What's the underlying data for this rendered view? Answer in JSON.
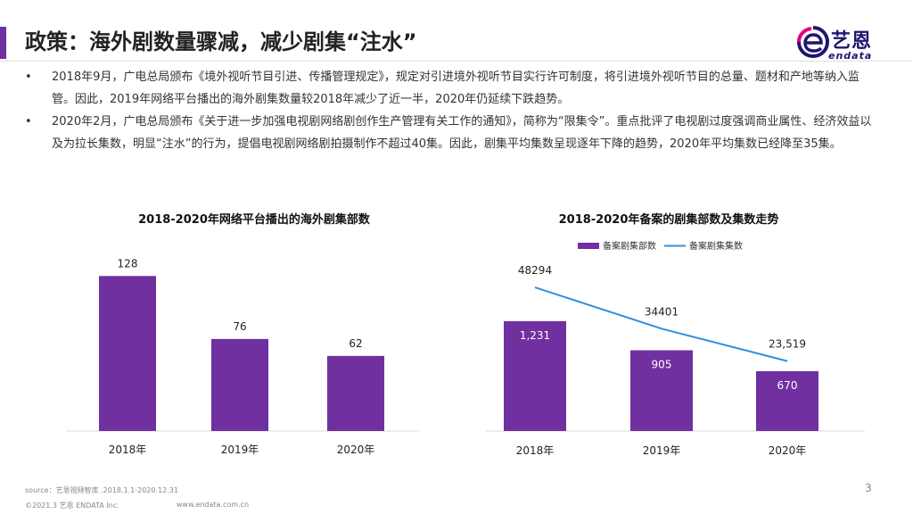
{
  "page": {
    "title": "政策：海外剧数量骤减，减少剧集“注水”",
    "page_number": "3"
  },
  "logo": {
    "name_cn": "艺恩",
    "name_en": "endata",
    "colors": {
      "dark": "#1e1670",
      "pink": "#e6007e"
    }
  },
  "bullets": [
    {
      "marker": "•",
      "text": "2018年9月，广电总局颁布《境外视听节目引进、传播管理规定》，规定对引进境外视听节目实行许可制度，将引进境外视听节目的总量、题材和产地等纳入监管。因此，2019年网络平台播出的海外剧集数量较2018年减少了近一半，2020年仍延续下跌趋势。"
    },
    {
      "marker": "•",
      "text": "2020年2月，广电总局颁布《关于进一步加强电视剧网络剧创作生产管理有关工作的通知》，简称为“限集令”。重点批评了电视剧过度强调商业属性、经济效益以及为拉长集数，明显“注水”的行为，提倡电视剧网络剧拍摄制作不超过40集。因此，剧集平均集数呈现逐年下降的趋势，2020年平均集数已经降至35集。"
    }
  ],
  "chart_data": [
    {
      "type": "bar",
      "title": "2018-2020年网络平台播出的海外剧集部数",
      "categories": [
        "2018年",
        "2019年",
        "2020年"
      ],
      "values": [
        128,
        76,
        62
      ],
      "value_labels": [
        "128",
        "76",
        "62"
      ],
      "ylim": [
        0,
        140
      ],
      "color": "#7030a0"
    },
    {
      "type": "bar+line",
      "title": "2018-2020年备案的剧集部数及集数走势",
      "categories": [
        "2018年",
        "2019年",
        "2020年"
      ],
      "series": [
        {
          "name": "备案剧集部数",
          "type": "bar",
          "values": [
            1231,
            905,
            670
          ],
          "labels": [
            "1,231",
            "905",
            "670"
          ],
          "color": "#7030a0"
        },
        {
          "name": "备案剧集集数",
          "type": "line",
          "values": [
            48294,
            34401,
            23519
          ],
          "labels": [
            "48294",
            "34401",
            "23,519"
          ],
          "color": "#2f8fe0"
        }
      ],
      "bar_ylim": [
        0,
        2000
      ],
      "line_ylim": [
        0,
        60000
      ],
      "legend_position": "top"
    }
  ],
  "footer": {
    "source": "source：艺恩视频智库 .2018.1.1-2020.12.31",
    "copyright": "©2021.3 艺恩 ENDATA Inc.",
    "url": "www.endata.com.cn"
  }
}
